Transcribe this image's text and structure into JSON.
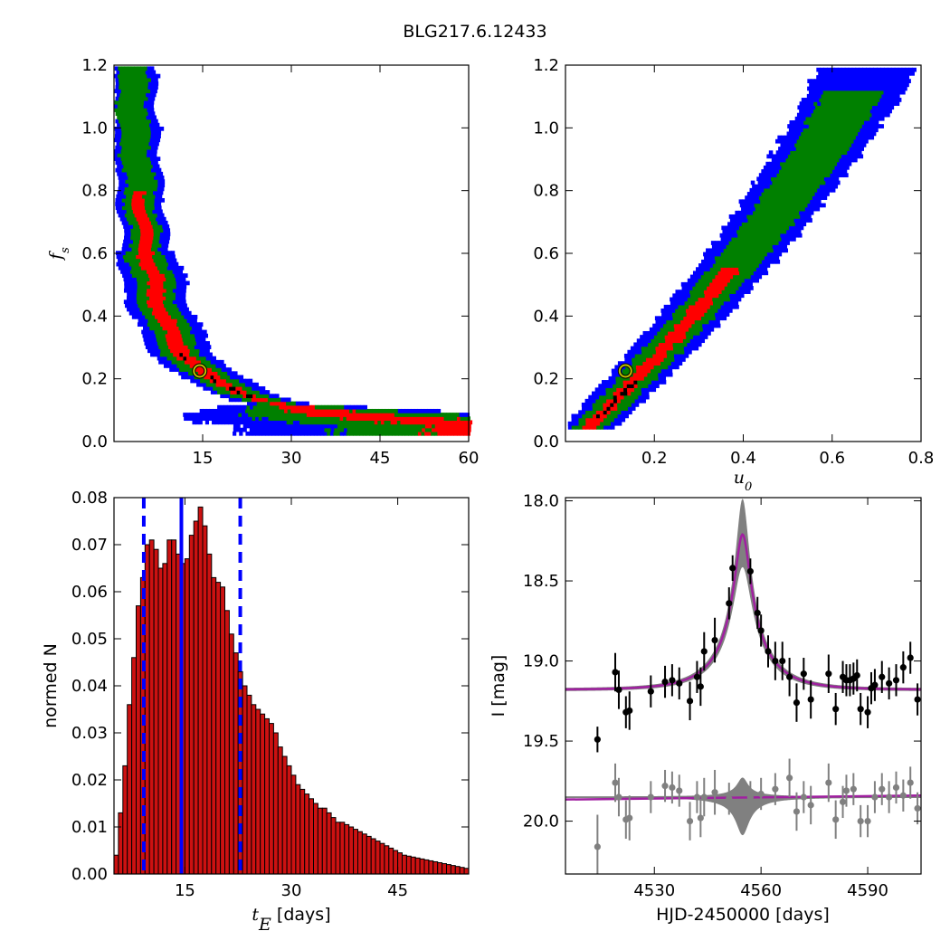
{
  "figure": {
    "title": "BLG217.6.12433",
    "colors": {
      "outer": "#0000ff",
      "middle": "#008000",
      "inner": "#ff0000",
      "core": "#000000",
      "marker_edge": "#bfbf00",
      "hist": "#cc1111",
      "model": "#a020a0",
      "band": "#808080",
      "data_main": "#000000",
      "data_resid": "#808080",
      "vline": "#0000ff"
    }
  },
  "chart_data": [
    {
      "id": "fs_vs_te",
      "type": "heatmap",
      "xlabel": "",
      "ylabel": "f_s",
      "ylabel_main": "f",
      "ylabel_sub": "s",
      "xlim": [
        0,
        60
      ],
      "ylim": [
        0,
        1.2
      ],
      "xticks": [
        15,
        30,
        45,
        60
      ],
      "xtick_labels": [
        "15",
        "30",
        "45",
        "60"
      ],
      "yticks": [
        0,
        0.2,
        0.4,
        0.6,
        0.8,
        1.0,
        1.2
      ],
      "ytick_labels": [
        "0.0",
        "0.2",
        "0.4",
        "0.6",
        "0.8",
        "1.0",
        "1.2"
      ],
      "best_fit": {
        "x": 14.5,
        "y": 0.225
      }
    },
    {
      "id": "fs_vs_u0",
      "type": "heatmap",
      "xlabel": "u_0",
      "xlabel_main": "u",
      "xlabel_sub": "0",
      "ylabel": "",
      "xlim": [
        0,
        0.8
      ],
      "ylim": [
        0,
        1.2
      ],
      "xticks": [
        0.2,
        0.4,
        0.6,
        0.8
      ],
      "xtick_labels": [
        "0.2",
        "0.4",
        "0.6",
        "0.8"
      ],
      "yticks": [
        0,
        0.2,
        0.4,
        0.6,
        0.8,
        1.0,
        1.2
      ],
      "ytick_labels": [
        "0.0",
        "0.2",
        "0.4",
        "0.6",
        "0.8",
        "1.0",
        "1.2"
      ],
      "best_fit": {
        "x": 0.135,
        "y": 0.225
      }
    },
    {
      "id": "te_histogram",
      "type": "bar",
      "xlabel_main": "t",
      "xlabel_sub": "E",
      "xlabel_rest": " [days]",
      "ylabel": "normed N",
      "xlim": [
        5,
        55
      ],
      "ylim": [
        0,
        0.08
      ],
      "xticks": [
        15,
        30,
        45
      ],
      "xtick_labels": [
        "15",
        "30",
        "45"
      ],
      "yticks": [
        0,
        0.01,
        0.02,
        0.03,
        0.04,
        0.05,
        0.06,
        0.07,
        0.08
      ],
      "ytick_labels": [
        "0.00",
        "0.01",
        "0.02",
        "0.03",
        "0.04",
        "0.05",
        "0.06",
        "0.07",
        "0.08"
      ],
      "bin_start": 5,
      "bin_width": 0.625,
      "values": [
        0.004,
        0.013,
        0.023,
        0.036,
        0.046,
        0.057,
        0.063,
        0.07,
        0.071,
        0.069,
        0.065,
        0.066,
        0.071,
        0.071,
        0.068,
        0.066,
        0.067,
        0.072,
        0.075,
        0.078,
        0.074,
        0.068,
        0.063,
        0.062,
        0.061,
        0.056,
        0.051,
        0.047,
        0.043,
        0.04,
        0.038,
        0.036,
        0.035,
        0.034,
        0.033,
        0.032,
        0.03,
        0.027,
        0.025,
        0.023,
        0.021,
        0.019,
        0.018,
        0.017,
        0.016,
        0.015,
        0.014,
        0.014,
        0.013,
        0.012,
        0.011,
        0.011,
        0.0105,
        0.01,
        0.0095,
        0.009,
        0.0085,
        0.008,
        0.0075,
        0.007,
        0.0065,
        0.006,
        0.0055,
        0.005,
        0.0045,
        0.004,
        0.0038,
        0.0036,
        0.0034,
        0.0032,
        0.003,
        0.0028,
        0.0026,
        0.0024,
        0.0022,
        0.002,
        0.0018,
        0.0016,
        0.0014,
        0.0012
      ],
      "median": 14.5,
      "bounds": [
        9.2,
        22.8
      ]
    },
    {
      "id": "lightcurve",
      "type": "scatter",
      "xlabel": "HJD-2450000 [days]",
      "ylabel": "I [mag]",
      "xlim": [
        4505,
        4605
      ],
      "ylim": [
        20.33,
        17.98
      ],
      "xticks": [
        4530,
        4560,
        4590
      ],
      "xtick_labels": [
        "4530",
        "4560",
        "4590"
      ],
      "yticks": [
        18.0,
        18.5,
        19.0,
        19.5,
        20.0
      ],
      "ytick_labels": [
        "18.0",
        "18.5",
        "19.0",
        "19.5",
        "20.0"
      ],
      "model": {
        "t0": 4554.8,
        "base_mag": 19.18,
        "amp": 0.97,
        "tE": 14.5,
        "u0": 0.135,
        "fs": 0.225
      },
      "resid_offset": 19.85,
      "points_main": [
        {
          "x": 4514,
          "y": 19.49,
          "e": 0.08
        },
        {
          "x": 4519,
          "y": 19.07,
          "e": 0.12
        },
        {
          "x": 4520,
          "y": 19.18,
          "e": 0.12
        },
        {
          "x": 4522,
          "y": 19.32,
          "e": 0.1
        },
        {
          "x": 4523,
          "y": 19.31,
          "e": 0.12
        },
        {
          "x": 4529,
          "y": 19.19,
          "e": 0.1
        },
        {
          "x": 4533,
          "y": 19.13,
          "e": 0.1
        },
        {
          "x": 4535,
          "y": 19.12,
          "e": 0.1
        },
        {
          "x": 4537,
          "y": 19.14,
          "e": 0.1
        },
        {
          "x": 4540,
          "y": 19.25,
          "e": 0.12
        },
        {
          "x": 4542,
          "y": 19.1,
          "e": 0.1
        },
        {
          "x": 4543,
          "y": 19.16,
          "e": 0.12
        },
        {
          "x": 4544,
          "y": 18.94,
          "e": 0.12
        },
        {
          "x": 4547,
          "y": 18.87,
          "e": 0.14
        },
        {
          "x": 4551,
          "y": 18.64,
          "e": 0.1
        },
        {
          "x": 4552,
          "y": 18.42,
          "e": 0.08
        },
        {
          "x": 4557,
          "y": 18.44,
          "e": 0.08
        },
        {
          "x": 4559,
          "y": 18.7,
          "e": 0.1
        },
        {
          "x": 4560,
          "y": 18.81,
          "e": 0.1
        },
        {
          "x": 4562,
          "y": 18.94,
          "e": 0.1
        },
        {
          "x": 4564,
          "y": 19.0,
          "e": 0.12
        },
        {
          "x": 4566,
          "y": 19.0,
          "e": 0.12
        },
        {
          "x": 4568,
          "y": 19.1,
          "e": 0.12
        },
        {
          "x": 4570,
          "y": 19.26,
          "e": 0.12
        },
        {
          "x": 4572,
          "y": 19.08,
          "e": 0.1
        },
        {
          "x": 4574,
          "y": 19.24,
          "e": 0.12
        },
        {
          "x": 4579,
          "y": 19.08,
          "e": 0.12
        },
        {
          "x": 4581,
          "y": 19.3,
          "e": 0.1
        },
        {
          "x": 4583,
          "y": 19.1,
          "e": 0.1
        },
        {
          "x": 4584,
          "y": 19.12,
          "e": 0.1
        },
        {
          "x": 4585,
          "y": 19.12,
          "e": 0.1
        },
        {
          "x": 4586,
          "y": 19.11,
          "e": 0.1
        },
        {
          "x": 4587,
          "y": 19.09,
          "e": 0.1
        },
        {
          "x": 4588,
          "y": 19.3,
          "e": 0.1
        },
        {
          "x": 4590,
          "y": 19.32,
          "e": 0.1
        },
        {
          "x": 4591,
          "y": 19.17,
          "e": 0.1
        },
        {
          "x": 4592,
          "y": 19.15,
          "e": 0.1
        },
        {
          "x": 4594,
          "y": 19.1,
          "e": 0.1
        },
        {
          "x": 4596,
          "y": 19.14,
          "e": 0.1
        },
        {
          "x": 4598,
          "y": 19.12,
          "e": 0.1
        },
        {
          "x": 4600,
          "y": 19.04,
          "e": 0.1
        },
        {
          "x": 4602,
          "y": 18.98,
          "e": 0.1
        },
        {
          "x": 4604,
          "y": 19.24,
          "e": 0.1
        }
      ],
      "points_resid": [
        {
          "x": 4514,
          "y": 20.16,
          "e": 0.2
        },
        {
          "x": 4519,
          "y": 19.76,
          "e": 0.12
        },
        {
          "x": 4520,
          "y": 19.85,
          "e": 0.12
        },
        {
          "x": 4522,
          "y": 19.99,
          "e": 0.12
        },
        {
          "x": 4523,
          "y": 19.98,
          "e": 0.14
        },
        {
          "x": 4529,
          "y": 19.85,
          "e": 0.1
        },
        {
          "x": 4533,
          "y": 19.78,
          "e": 0.1
        },
        {
          "x": 4535,
          "y": 19.79,
          "e": 0.1
        },
        {
          "x": 4537,
          "y": 19.81,
          "e": 0.1
        },
        {
          "x": 4540,
          "y": 20.0,
          "e": 0.12
        },
        {
          "x": 4542,
          "y": 19.85,
          "e": 0.1
        },
        {
          "x": 4543,
          "y": 19.98,
          "e": 0.12
        },
        {
          "x": 4544,
          "y": 19.85,
          "e": 0.12
        },
        {
          "x": 4547,
          "y": 19.82,
          "e": 0.14
        },
        {
          "x": 4551,
          "y": 19.86,
          "e": 0.1
        },
        {
          "x": 4557,
          "y": 19.85,
          "e": 0.1
        },
        {
          "x": 4560,
          "y": 19.83,
          "e": 0.1
        },
        {
          "x": 4564,
          "y": 19.8,
          "e": 0.1
        },
        {
          "x": 4568,
          "y": 19.73,
          "e": 0.12
        },
        {
          "x": 4570,
          "y": 19.94,
          "e": 0.12
        },
        {
          "x": 4572,
          "y": 19.85,
          "e": 0.1
        },
        {
          "x": 4574,
          "y": 19.9,
          "e": 0.12
        },
        {
          "x": 4579,
          "y": 19.76,
          "e": 0.12
        },
        {
          "x": 4581,
          "y": 19.99,
          "e": 0.12
        },
        {
          "x": 4583,
          "y": 19.88,
          "e": 0.1
        },
        {
          "x": 4584,
          "y": 19.81,
          "e": 0.1
        },
        {
          "x": 4586,
          "y": 19.8,
          "e": 0.1
        },
        {
          "x": 4588,
          "y": 20.0,
          "e": 0.1
        },
        {
          "x": 4590,
          "y": 20.0,
          "e": 0.1
        },
        {
          "x": 4592,
          "y": 19.85,
          "e": 0.1
        },
        {
          "x": 4594,
          "y": 19.8,
          "e": 0.1
        },
        {
          "x": 4596,
          "y": 19.85,
          "e": 0.1
        },
        {
          "x": 4598,
          "y": 19.79,
          "e": 0.1
        },
        {
          "x": 4600,
          "y": 19.84,
          "e": 0.1
        },
        {
          "x": 4602,
          "y": 19.76,
          "e": 0.1
        },
        {
          "x": 4604,
          "y": 19.92,
          "e": 0.1
        }
      ]
    }
  ]
}
